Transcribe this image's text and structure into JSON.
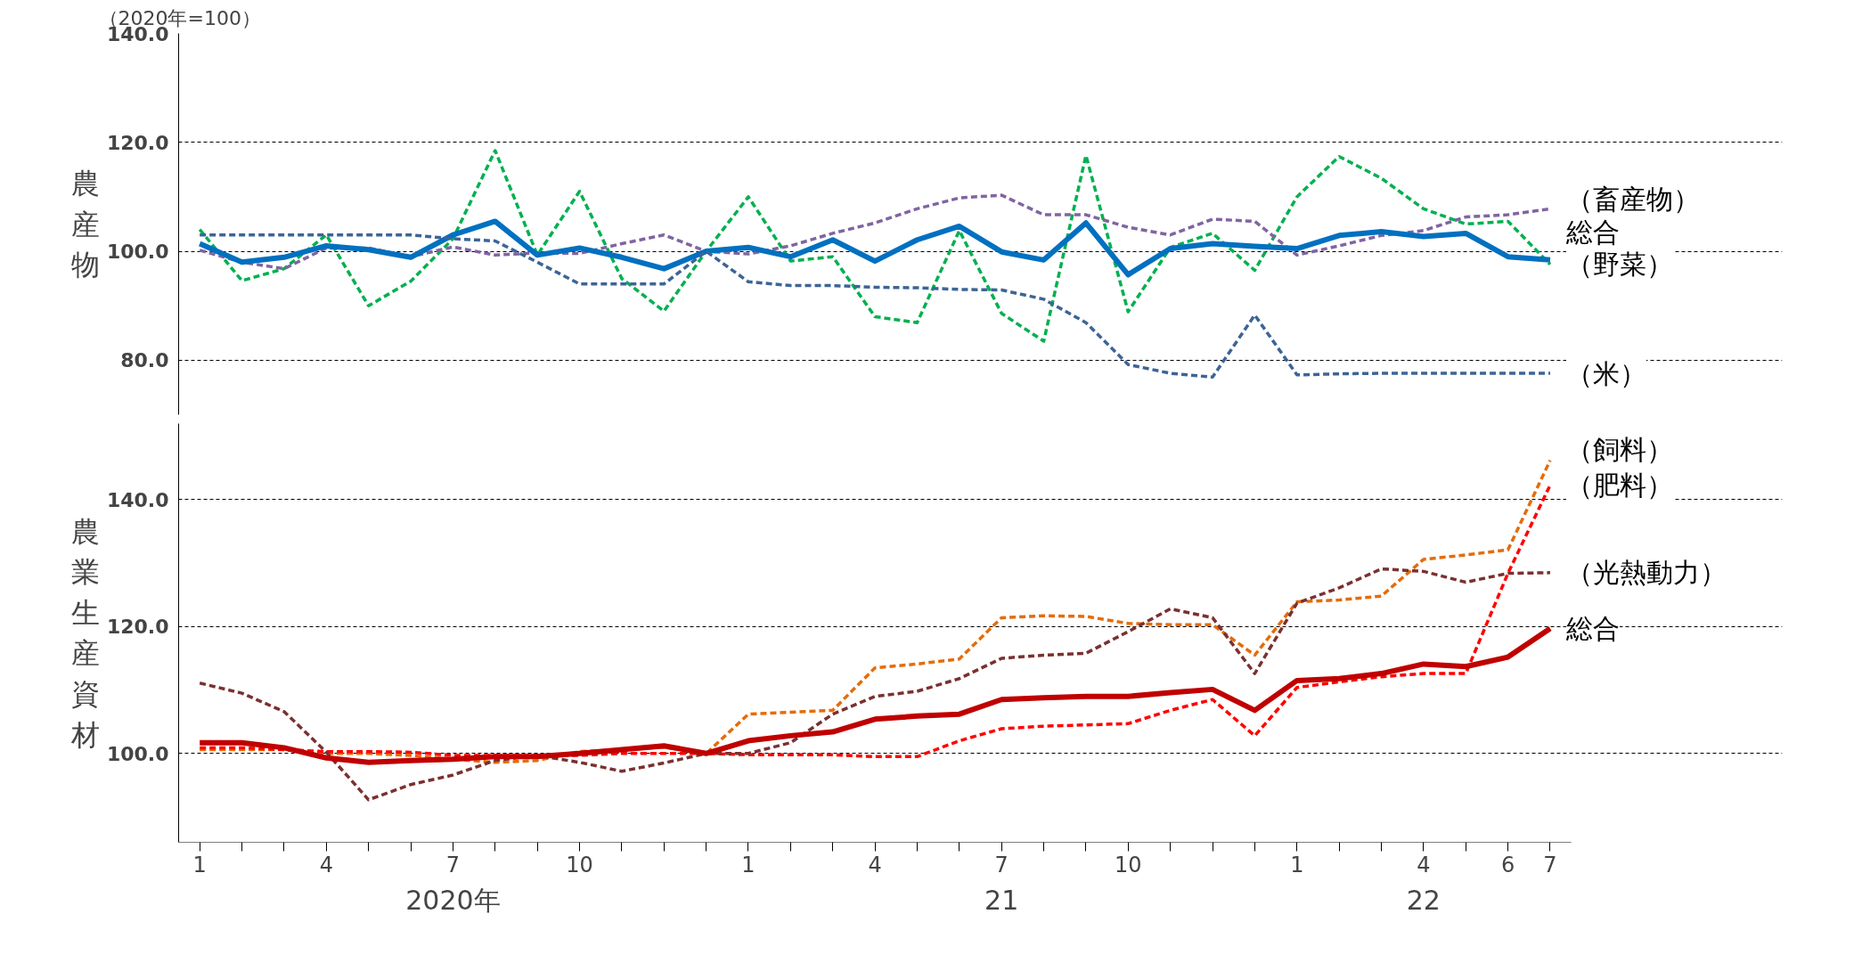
{
  "chart_data": [
    {
      "type": "line",
      "subtitle": "（2020年=100）",
      "ylabel": "農産物",
      "categories": [
        "1",
        null,
        null,
        "4",
        null,
        null,
        "7",
        null,
        null,
        "10",
        null,
        null,
        null,
        "1",
        null,
        null,
        "4",
        null,
        null,
        "7",
        null,
        null,
        "10",
        null,
        null,
        null,
        "1",
        null,
        null,
        "4",
        null,
        "6",
        "7"
      ],
      "ylim": [
        70,
        140
      ],
      "yticks": [
        {
          "value": 80,
          "label": "80.0"
        },
        {
          "value": 100,
          "label": "100.0"
        },
        {
          "value": 120,
          "label": "120.0"
        },
        {
          "value": 140,
          "label": "140.0"
        }
      ],
      "grid": "y",
      "tick_labels": "y",
      "series": [
        {
          "name": "（野菜）",
          "color": "#00b050",
          "line_style": "dashed",
          "values": [
            104,
            94.6,
            96.8,
            103,
            90,
            94.5,
            102.3,
            118.5,
            99.3,
            111,
            95,
            89,
            100,
            110,
            98.2,
            99,
            88,
            86.9,
            103.8,
            88.6,
            83.5,
            117.6,
            88.9,
            100.7,
            103.3,
            96.5,
            110,
            117.4,
            113.4,
            107.8,
            105,
            105.5,
            97.6
          ]
        },
        {
          "name": "（畜産物）",
          "color": "#8064a2",
          "line_style": "dashed",
          "values": [
            100.2,
            98,
            96.8,
            100.6,
            100.6,
            99,
            100.8,
            99.3,
            99.7,
            99.6,
            101.4,
            103,
            100,
            99.5,
            101,
            103.3,
            105.2,
            107.8,
            109.8,
            110.3,
            106.7,
            106.7,
            104.4,
            103,
            105.9,
            105.5,
            99.3,
            101,
            102.9,
            103.8,
            106.3,
            106.7,
            107.8
          ]
        },
        {
          "name": "総合",
          "color": "#0070c0",
          "line_style": "solid",
          "values": [
            101.4,
            98,
            98.9,
            101,
            100.3,
            98.9,
            103,
            105.5,
            99.3,
            100.6,
            98.9,
            96.8,
            100,
            100.7,
            99,
            102.1,
            98.2,
            102.1,
            104.6,
            99.9,
            98.4,
            105.2,
            95.7,
            100.5,
            101.4,
            100.9,
            100.5,
            102.9,
            103.6,
            102.7,
            103.3,
            99,
            98.4
          ]
        },
        {
          "name": "（米）",
          "color": "#3d6496",
          "line_style": "dashed",
          "values": [
            103,
            103,
            103,
            103,
            103,
            103,
            102.3,
            101.9,
            98,
            94,
            94,
            94,
            100,
            94.4,
            93.7,
            93.7,
            93.4,
            93.3,
            93,
            92.9,
            91.2,
            86.9,
            79.2,
            77.6,
            76.9,
            88.3,
            77.3,
            77.5,
            77.6,
            77.6,
            77.6,
            77.6,
            77.6
          ]
        }
      ]
    },
    {
      "type": "line",
      "ylabel": "農業生産資材",
      "categories": [
        "1",
        null,
        null,
        "4",
        null,
        null,
        "7",
        null,
        null,
        "10",
        null,
        null,
        null,
        "1",
        null,
        null,
        "4",
        null,
        null,
        "7",
        null,
        null,
        "10",
        null,
        null,
        null,
        "1",
        null,
        null,
        "4",
        null,
        "6",
        "7"
      ],
      "ylim": [
        86,
        152
      ],
      "yticks": [
        {
          "value": 100,
          "label": "100.0"
        },
        {
          "value": 120,
          "label": "120.0"
        },
        {
          "value": 140,
          "label": "140.0"
        }
      ],
      "grid": "y",
      "annotations": [
        "2020年",
        "21",
        "22"
      ],
      "series": [
        {
          "name": "（飼料）",
          "color": "#e46c0a",
          "line_style": "dashed",
          "values": [
            100.6,
            100.6,
            100.6,
            100,
            100,
            99.7,
            99.1,
            98.6,
            98.9,
            100.3,
            100.6,
            101,
            100,
            106.2,
            106.5,
            106.8,
            113.5,
            114.1,
            114.9,
            121.4,
            121.7,
            121.6,
            120.5,
            120.3,
            120.3,
            115.5,
            123.9,
            124.2,
            124.8,
            130.6,
            131.3,
            132.1,
            146.2
          ]
        },
        {
          "name": "（肥料）",
          "color": "#ff0000",
          "line_style": "dashed",
          "values": [
            100.9,
            100.9,
            100.6,
            100.3,
            100.3,
            100.2,
            99.7,
            99.7,
            99.7,
            99.7,
            100,
            100,
            100,
            99.8,
            99.8,
            99.8,
            99.5,
            99.5,
            102,
            103.9,
            104.3,
            104.5,
            104.7,
            106.8,
            108.5,
            102.8,
            110.4,
            111.3,
            112.1,
            112.6,
            112.6,
            128.4,
            142.3
          ]
        },
        {
          "name": "（光熱動力）",
          "color": "#7b3030",
          "line_style": "dashed",
          "values": [
            111.1,
            109.5,
            106.6,
            100.2,
            92.7,
            95.1,
            96.6,
            98.9,
            99.7,
            98.6,
            97.2,
            98.5,
            100,
            100,
            101.7,
            106.2,
            109,
            109.8,
            111.8,
            115,
            115.5,
            115.8,
            119.2,
            122.8,
            121.4,
            112.6,
            123.7,
            126.1,
            129.1,
            128.7,
            127,
            128.4,
            128.5
          ]
        },
        {
          "name": "総合",
          "color": "#c00000",
          "line_style": "solid",
          "values": [
            101.7,
            101.7,
            100.9,
            99.3,
            98.6,
            98.9,
            99.1,
            99.5,
            99.5,
            100,
            100.6,
            101.2,
            100,
            102,
            102.8,
            103.4,
            105.4,
            105.9,
            106.2,
            108.5,
            108.8,
            109,
            109,
            109.6,
            110.1,
            106.8,
            111.5,
            111.8,
            112.6,
            114.1,
            113.7,
            115.2,
            119.7
          ]
        }
      ]
    }
  ]
}
